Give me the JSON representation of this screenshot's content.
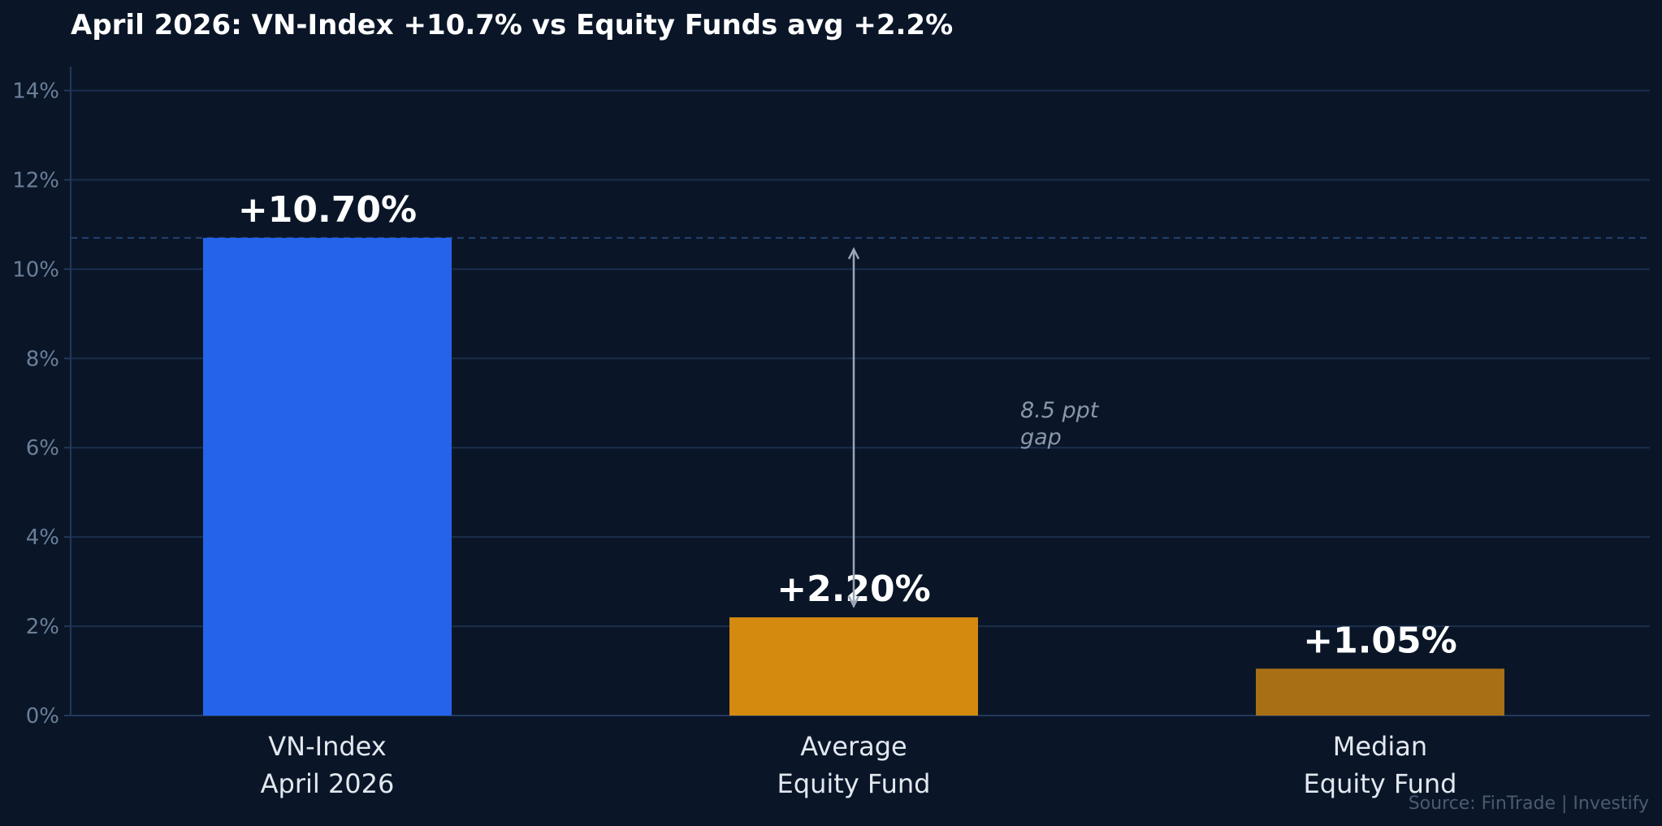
{
  "chart_data": {
    "type": "bar",
    "title": "April 2026: VN-Index +10.7% vs Equity Funds avg +2.2%",
    "xlabel": "",
    "ylabel": "",
    "categories": [
      [
        "VN-Index",
        "April 2026"
      ],
      [
        "Average",
        "Equity Fund"
      ],
      [
        "Median",
        "Equity Fund"
      ]
    ],
    "values": [
      10.7,
      2.2,
      1.05
    ],
    "value_labels": [
      "+10.70%",
      "+2.20%",
      "+1.05%"
    ],
    "colors": [
      "#2563eb",
      "#d4890f",
      "#a86f15"
    ],
    "ylim": [
      0,
      14.5
    ],
    "yticks": [
      0,
      2,
      4,
      6,
      8,
      10,
      12,
      14
    ],
    "ytick_labels": [
      "0%",
      "2%",
      "4%",
      "6%",
      "8%",
      "10%",
      "12%",
      "14%"
    ],
    "grid": true,
    "reference_line": {
      "value": 10.7,
      "style": "dashed"
    },
    "annotation": {
      "lines": [
        "8.5 ppt",
        "gap"
      ],
      "arrow_from": 10.7,
      "arrow_to": 2.2,
      "at_category": 1
    },
    "source": "Source: FinTrade | Investify"
  },
  "colors": {
    "background": "#0a1628",
    "grid": "#1b2f4c",
    "axis": "#22385a",
    "arrow": "#9aa6b8"
  }
}
